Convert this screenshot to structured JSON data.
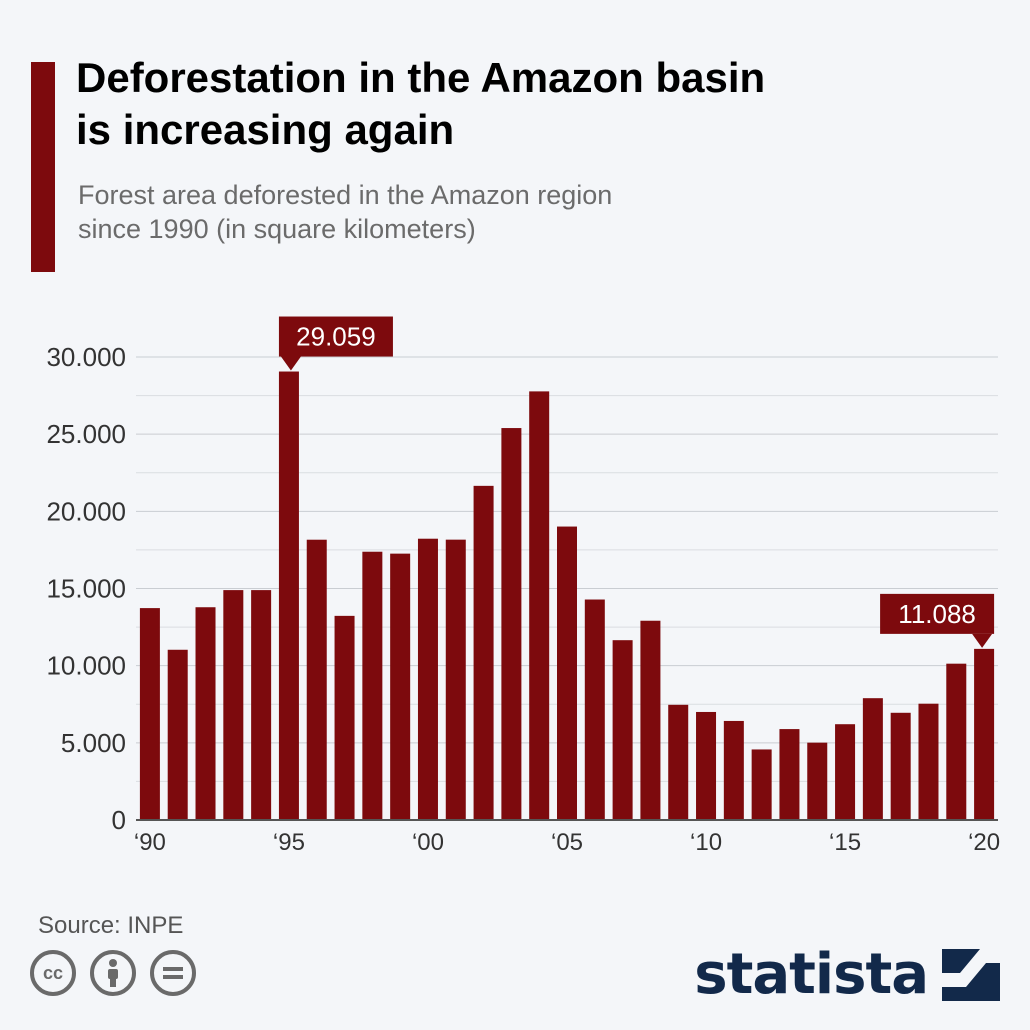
{
  "header": {
    "title_line1": "Deforestation in the Amazon basin",
    "title_line2": "is increasing again",
    "subtitle_line1": "Forest area deforested in the Amazon region",
    "subtitle_line2": "since 1990 (in square kilometers)"
  },
  "footer": {
    "source": "Source: INPE",
    "brand": "statista",
    "license_icons": [
      "cc-icon",
      "attribution-icon",
      "no-derivatives-icon"
    ]
  },
  "colors": {
    "bar": "#7d0a0d",
    "grid": "#c9cdd2",
    "background": "#f4f6f9",
    "brand": "#12294a"
  },
  "chart_data": {
    "type": "bar",
    "title": "",
    "xlabel": "",
    "ylabel": "",
    "categories": [
      "1990",
      "1991",
      "1992",
      "1993",
      "1994",
      "1995",
      "1996",
      "1997",
      "1998",
      "1999",
      "2000",
      "2001",
      "2002",
      "2003",
      "2004",
      "2005",
      "2006",
      "2007",
      "2008",
      "2009",
      "2010",
      "2011",
      "2012",
      "2013",
      "2014",
      "2015",
      "2016",
      "2017",
      "2018",
      "2019",
      "2020"
    ],
    "values": [
      13730,
      11030,
      13786,
      14896,
      14896,
      29059,
      18161,
      13227,
      17383,
      17259,
      18226,
      18165,
      21651,
      25396,
      27772,
      19014,
      14286,
      11651,
      12911,
      7464,
      7000,
      6418,
      4571,
      5891,
      5012,
      6207,
      7893,
      6947,
      7536,
      10129,
      11088
    ],
    "ylim": [
      0,
      30000
    ],
    "yticks": [
      "0",
      "5.000",
      "10.000",
      "15.000",
      "20.000",
      "25.000",
      "30.000"
    ],
    "xtick_labels": [
      {
        "index": 0,
        "label": "‘90"
      },
      {
        "index": 5,
        "label": "‘95"
      },
      {
        "index": 10,
        "label": "‘00"
      },
      {
        "index": 15,
        "label": "‘05"
      },
      {
        "index": 20,
        "label": "‘10"
      },
      {
        "index": 25,
        "label": "‘15"
      },
      {
        "index": 30,
        "label": "‘20"
      }
    ],
    "annotations": [
      {
        "index": 5,
        "text": "29.059"
      },
      {
        "index": 30,
        "text": "11.088"
      }
    ],
    "grid": true
  }
}
